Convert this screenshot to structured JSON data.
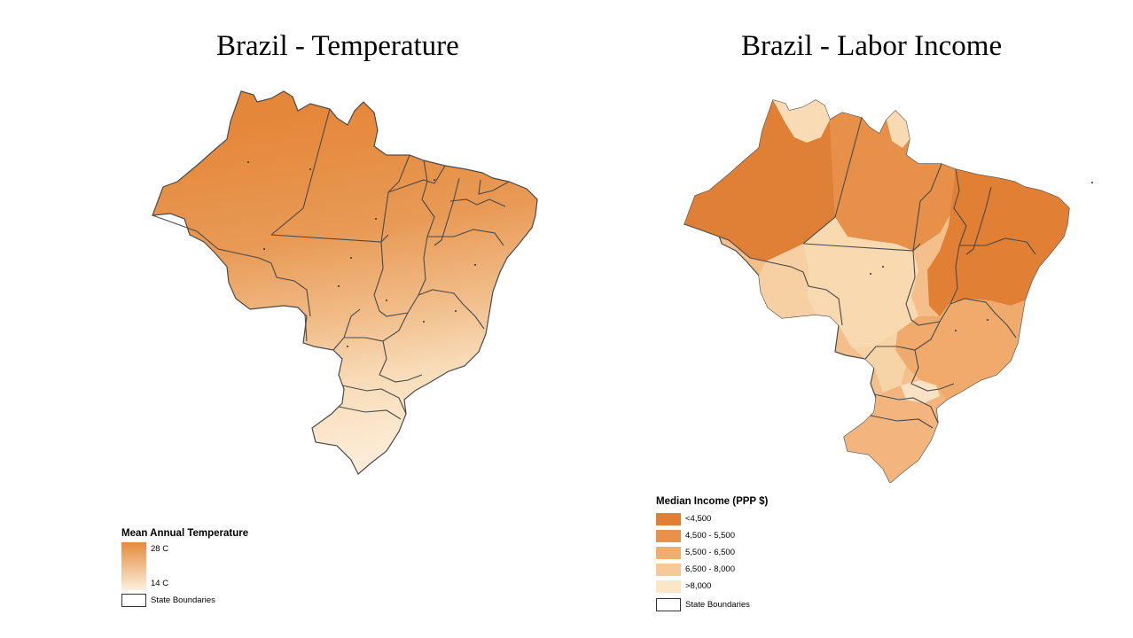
{
  "left_map": {
    "title": "Brazil - Temperature",
    "legend": {
      "title": "Mean Annual Temperature",
      "high_label": "28 C",
      "low_label": "14 C",
      "high_color": "#e58a3c",
      "low_color": "#fdf0dd",
      "boundary_label": "State Boundaries"
    }
  },
  "right_map": {
    "title": "Brazil - Labor Income",
    "legend": {
      "title": "Median Income (PPP $)",
      "classes": [
        {
          "label": "<4,500",
          "color": "#e07e35"
        },
        {
          "label": "4,500 - 5,500",
          "color": "#e9914b"
        },
        {
          "label": "5,500 - 6,500",
          "color": "#f1ac6f"
        },
        {
          "label": "6,500 - 8,000",
          "color": "#f7c998"
        },
        {
          "label": ">8,000",
          "color": "#fbe6c8"
        }
      ],
      "boundary_label": "State Boundaries"
    }
  }
}
